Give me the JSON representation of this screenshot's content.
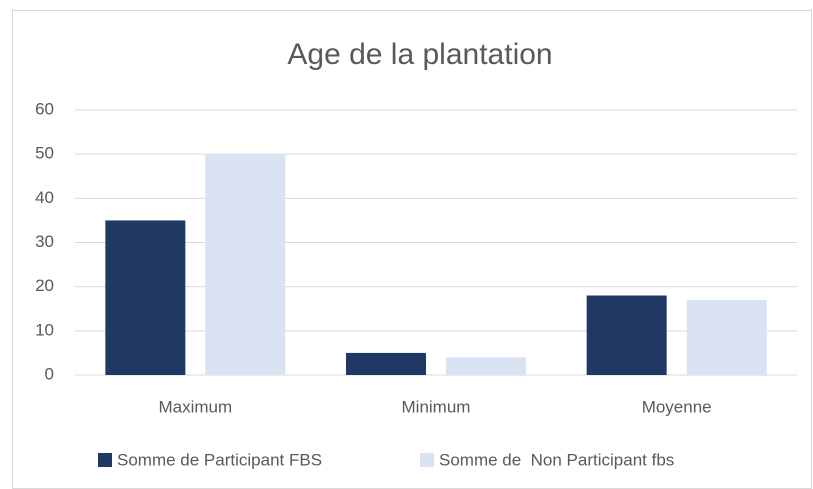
{
  "chart_data": {
    "type": "bar",
    "title": "Age de la plantation",
    "categories": [
      "Maximum",
      "Minimum",
      "Moyenne"
    ],
    "series": [
      {
        "name": "Somme de Participant FBS",
        "color": "#203864",
        "values": [
          35,
          5,
          18
        ]
      },
      {
        "name": "Somme de  Non Participant fbs",
        "color": "#dae3f3",
        "values": [
          50,
          4,
          17
        ]
      }
    ],
    "ylim": [
      0,
      60
    ],
    "yticks": [
      0,
      10,
      20,
      30,
      40,
      50,
      60
    ],
    "grid": true,
    "legend": "bottom"
  }
}
